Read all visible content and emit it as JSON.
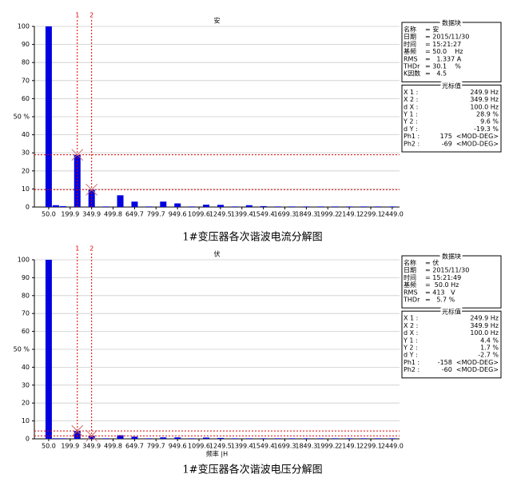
{
  "chart_data": [
    {
      "type": "bar",
      "title": "安",
      "caption": "1#变压器各次谐波电流分解图",
      "color": "#0000e0",
      "x": [
        50,
        100,
        150,
        250,
        350,
        450,
        550,
        650,
        750,
        850,
        950,
        1050,
        1150,
        1250,
        1350,
        1450,
        1550,
        1650,
        1750,
        1850,
        1950,
        2050,
        2150,
        2250,
        2350,
        2450
      ],
      "values": [
        100,
        1,
        0.5,
        28.9,
        9.6,
        0.3,
        6.5,
        3,
        0.3,
        3,
        2,
        0.3,
        1.3,
        1.2,
        0.3,
        1,
        0.5,
        0.3,
        0.3,
        0.3,
        0.3,
        0.3,
        0.3,
        0.3,
        0.3,
        0.3
      ],
      "xlim": [
        -50,
        2500
      ],
      "ylim": [
        0,
        100
      ],
      "xticks": [
        {
          "value": 50,
          "label": "50.0"
        },
        199.9,
        349.9,
        499.8,
        649.7,
        799.7,
        949.6,
        1099.6,
        1249.5,
        1399.4,
        1549.4,
        1699.3,
        1849.3,
        1999.2,
        2149.1,
        2299.1,
        {
          "value": 2449,
          "label": "2449.0"
        }
      ],
      "yticks": [
        0,
        10,
        20,
        30,
        40,
        {
          "value": 50,
          "label": "50 %"
        },
        60,
        70,
        80,
        90,
        100
      ],
      "grid": true,
      "cursors": [
        {
          "label": "1",
          "x": 249.9,
          "y": 28.9
        },
        {
          "label": "2",
          "x": 349.9,
          "y": 9.6
        }
      ],
      "data_panel": {
        "title": "数据块",
        "rows": [
          {
            "name": "名称",
            "value": "= 安"
          },
          {
            "name": "日期",
            "value": "= 2015/11/30"
          },
          {
            "name": "时间",
            "value": "= 15:21:27"
          },
          {
            "name": "基频",
            "value": "= 50.0    Hz"
          },
          {
            "name": "RMS",
            "value": "=   1.337 A"
          },
          {
            "name": "THDr",
            "value": "= 30.1    %"
          },
          {
            "name": "K因数",
            "value": "=   4.5"
          }
        ]
      },
      "cursor_panel": {
        "title": "光标值",
        "rows": [
          {
            "name": "X 1 :",
            "value": "249.9 Hz"
          },
          {
            "name": "X 2 :",
            "value": "349.9 Hz"
          },
          {
            "name": "d X :",
            "value": "100.0 Hz"
          },
          {
            "name": "Y 1 :",
            "value": "28.9 %"
          },
          {
            "name": "Y 2 :",
            "value": "9.6 %"
          },
          {
            "name": "d Y :",
            "value": "-19.3 %"
          },
          {
            "name": "Ph1 :",
            "value": "175  <MOD-DEG>"
          },
          {
            "name": "Ph2 :",
            "value": "-69  <MOD-DEG>"
          }
        ]
      }
    },
    {
      "type": "bar",
      "title": "伏",
      "caption": "1#变压器各次谐波电压分解图",
      "xlabel": "频率 |H",
      "color": "#0000e0",
      "x": [
        50,
        100,
        150,
        250,
        350,
        450,
        550,
        650,
        750,
        850,
        950,
        1050,
        1150,
        1250,
        1350,
        1450,
        1550,
        1650,
        1750,
        1850,
        1950,
        2050,
        2150,
        2250,
        2350,
        2450
      ],
      "values": [
        100,
        0.3,
        0.3,
        4.4,
        1.7,
        0.3,
        2,
        1.2,
        0.3,
        0.8,
        0.8,
        0.3,
        0.7,
        0.5,
        0.3,
        0.3,
        0.3,
        0.3,
        0.3,
        0.3,
        0.3,
        0.3,
        0.3,
        0.3,
        0.3,
        0.3
      ],
      "xlim": [
        -50,
        2500
      ],
      "ylim": [
        0,
        100
      ],
      "xticks": [
        {
          "value": 50,
          "label": "50.0"
        },
        199.9,
        349.9,
        499.8,
        649.7,
        799.7,
        949.6,
        1099.6,
        1249.5,
        1399.4,
        1549.4,
        1699.3,
        1849.3,
        1999.2,
        2149.1,
        2299.1,
        {
          "value": 2449,
          "label": "2449.0"
        }
      ],
      "yticks": [
        0,
        10,
        20,
        30,
        40,
        {
          "value": 50,
          "label": "50 %"
        },
        60,
        70,
        80,
        90,
        100
      ],
      "grid": true,
      "cursors": [
        {
          "label": "1",
          "x": 249.9,
          "y": 4.4
        },
        {
          "label": "2",
          "x": 349.9,
          "y": 1.7
        }
      ],
      "data_panel": {
        "title": "数据块",
        "rows": [
          {
            "name": "名称",
            "value": "= 伏"
          },
          {
            "name": "日期",
            "value": "= 2015/11/30"
          },
          {
            "name": "时间",
            "value": "= 15:21:49"
          },
          {
            "name": "基频",
            "value": "=  50.0 Hz"
          },
          {
            "name": "RMS",
            "value": "= 413   V"
          },
          {
            "name": "THDr",
            "value": "=   5.7 %"
          }
        ]
      },
      "cursor_panel": {
        "title": "光标值",
        "rows": [
          {
            "name": "X 1 :",
            "value": "249.9 Hz"
          },
          {
            "name": "X 2 :",
            "value": "349.9 Hz"
          },
          {
            "name": "d X :",
            "value": "100.0 Hz"
          },
          {
            "name": "Y 1 :",
            "value": "4.4 %"
          },
          {
            "name": "Y 2 :",
            "value": "1.7 %"
          },
          {
            "name": "d Y :",
            "value": "-2.7 %"
          },
          {
            "name": "Ph1 :",
            "value": "-158  <MOD-DEG>"
          },
          {
            "name": "Ph2 :",
            "value": "-60  <MOD-DEG>"
          }
        ]
      }
    }
  ]
}
